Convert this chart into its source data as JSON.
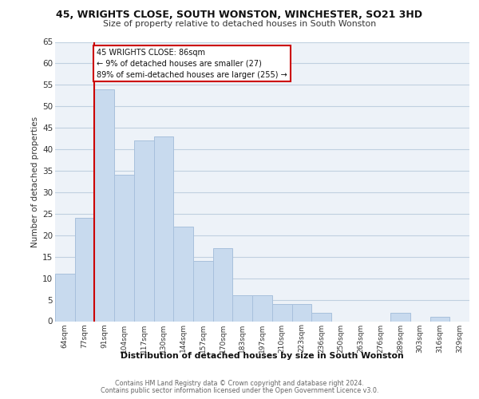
{
  "title1": "45, WRIGHTS CLOSE, SOUTH WONSTON, WINCHESTER, SO21 3HD",
  "title2": "Size of property relative to detached houses in South Wonston",
  "xlabel": "Distribution of detached houses by size in South Wonston",
  "ylabel": "Number of detached properties",
  "bar_color": "#c8daee",
  "bar_edge_color": "#a8c0dc",
  "grid_color": "#c0d0e0",
  "background_color": "#ffffff",
  "plot_bg_color": "#edf2f8",
  "categories": [
    "64sqm",
    "77sqm",
    "91sqm",
    "104sqm",
    "117sqm",
    "130sqm",
    "144sqm",
    "157sqm",
    "170sqm",
    "183sqm",
    "197sqm",
    "210sqm",
    "223sqm",
    "236sqm",
    "250sqm",
    "263sqm",
    "276sqm",
    "289sqm",
    "303sqm",
    "316sqm",
    "329sqm"
  ],
  "values": [
    11,
    24,
    54,
    34,
    42,
    43,
    22,
    14,
    17,
    6,
    6,
    4,
    4,
    2,
    0,
    0,
    0,
    2,
    0,
    1,
    0
  ],
  "ylim": [
    0,
    65
  ],
  "yticks": [
    0,
    5,
    10,
    15,
    20,
    25,
    30,
    35,
    40,
    45,
    50,
    55,
    60,
    65
  ],
  "property_line_color": "#cc0000",
  "property_line_bar_index": 2,
  "annotation_title": "45 WRIGHTS CLOSE: 86sqm",
  "annotation_line1": "← 9% of detached houses are smaller (27)",
  "annotation_line2": "89% of semi-detached houses are larger (255) →",
  "annotation_box_color": "#ffffff",
  "annotation_box_edge": "#cc0000",
  "footer1": "Contains HM Land Registry data © Crown copyright and database right 2024.",
  "footer2": "Contains public sector information licensed under the Open Government Licence v3.0."
}
